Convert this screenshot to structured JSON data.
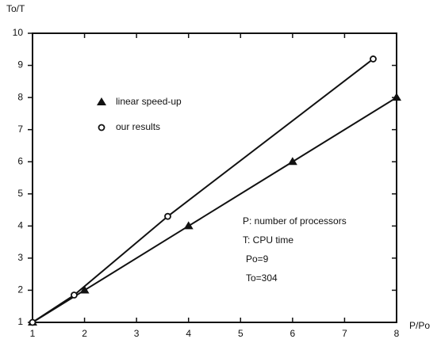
{
  "chart_data": {
    "type": "line",
    "y_label": "To/T",
    "x_label": "P/Po",
    "series": [
      {
        "name": "linear speed-up",
        "color": "#111111",
        "marker": "triangle",
        "x": [
          1,
          2,
          4,
          6,
          8
        ],
        "values": [
          1,
          2,
          4,
          6,
          8
        ]
      },
      {
        "name": "our results",
        "color": "#111111",
        "marker": "circle",
        "x": [
          1,
          1.8,
          3.6,
          7.55
        ],
        "values": [
          1,
          1.85,
          4.3,
          9.2
        ]
      }
    ],
    "annotations": [
      "P: number of processors",
      "T: CPU time",
      "Po=9",
      "To=304"
    ],
    "xlim": [
      1,
      8
    ],
    "ylim": [
      1,
      10
    ],
    "xticks": [
      1,
      2,
      3,
      4,
      5,
      6,
      7,
      8
    ],
    "yticks": [
      1,
      2,
      3,
      4,
      5,
      6,
      7,
      8,
      9,
      10
    ]
  }
}
